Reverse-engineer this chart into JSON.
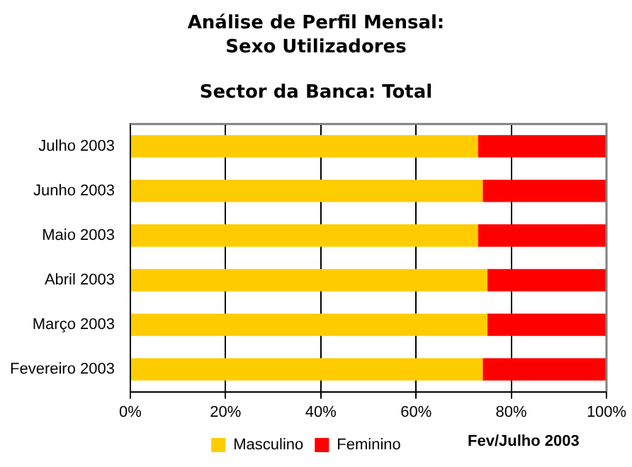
{
  "chart_data": {
    "type": "bar",
    "orientation": "horizontal",
    "stacked": true,
    "title": "Análise de Perfil Mensal: Sexo Utilizadores",
    "subtitle": "Sector da Banca: Total",
    "categories": [
      "Julho 2003",
      "Junho 2003",
      "Maio 2003",
      "Abril 2003",
      "Março 2003",
      "Fevereiro 2003"
    ],
    "series": [
      {
        "name": "Masculino",
        "color": "#ffcc00",
        "values": [
          73,
          74,
          73,
          75,
          75,
          74
        ]
      },
      {
        "name": "Feminino",
        "color": "#ff0000",
        "values": [
          27,
          26,
          27,
          25,
          25,
          26
        ]
      }
    ],
    "xlim": [
      0,
      100
    ],
    "xticks": [
      {
        "value": 0,
        "label": "0%"
      },
      {
        "value": 20,
        "label": "20%"
      },
      {
        "value": 40,
        "label": "40%"
      },
      {
        "value": 60,
        "label": "60%"
      },
      {
        "value": 80,
        "label": "80%"
      },
      {
        "value": 100,
        "label": "100%"
      }
    ],
    "grid": "x",
    "legend": "bottom",
    "annotations": [
      "Fev/Julho 2003"
    ]
  }
}
